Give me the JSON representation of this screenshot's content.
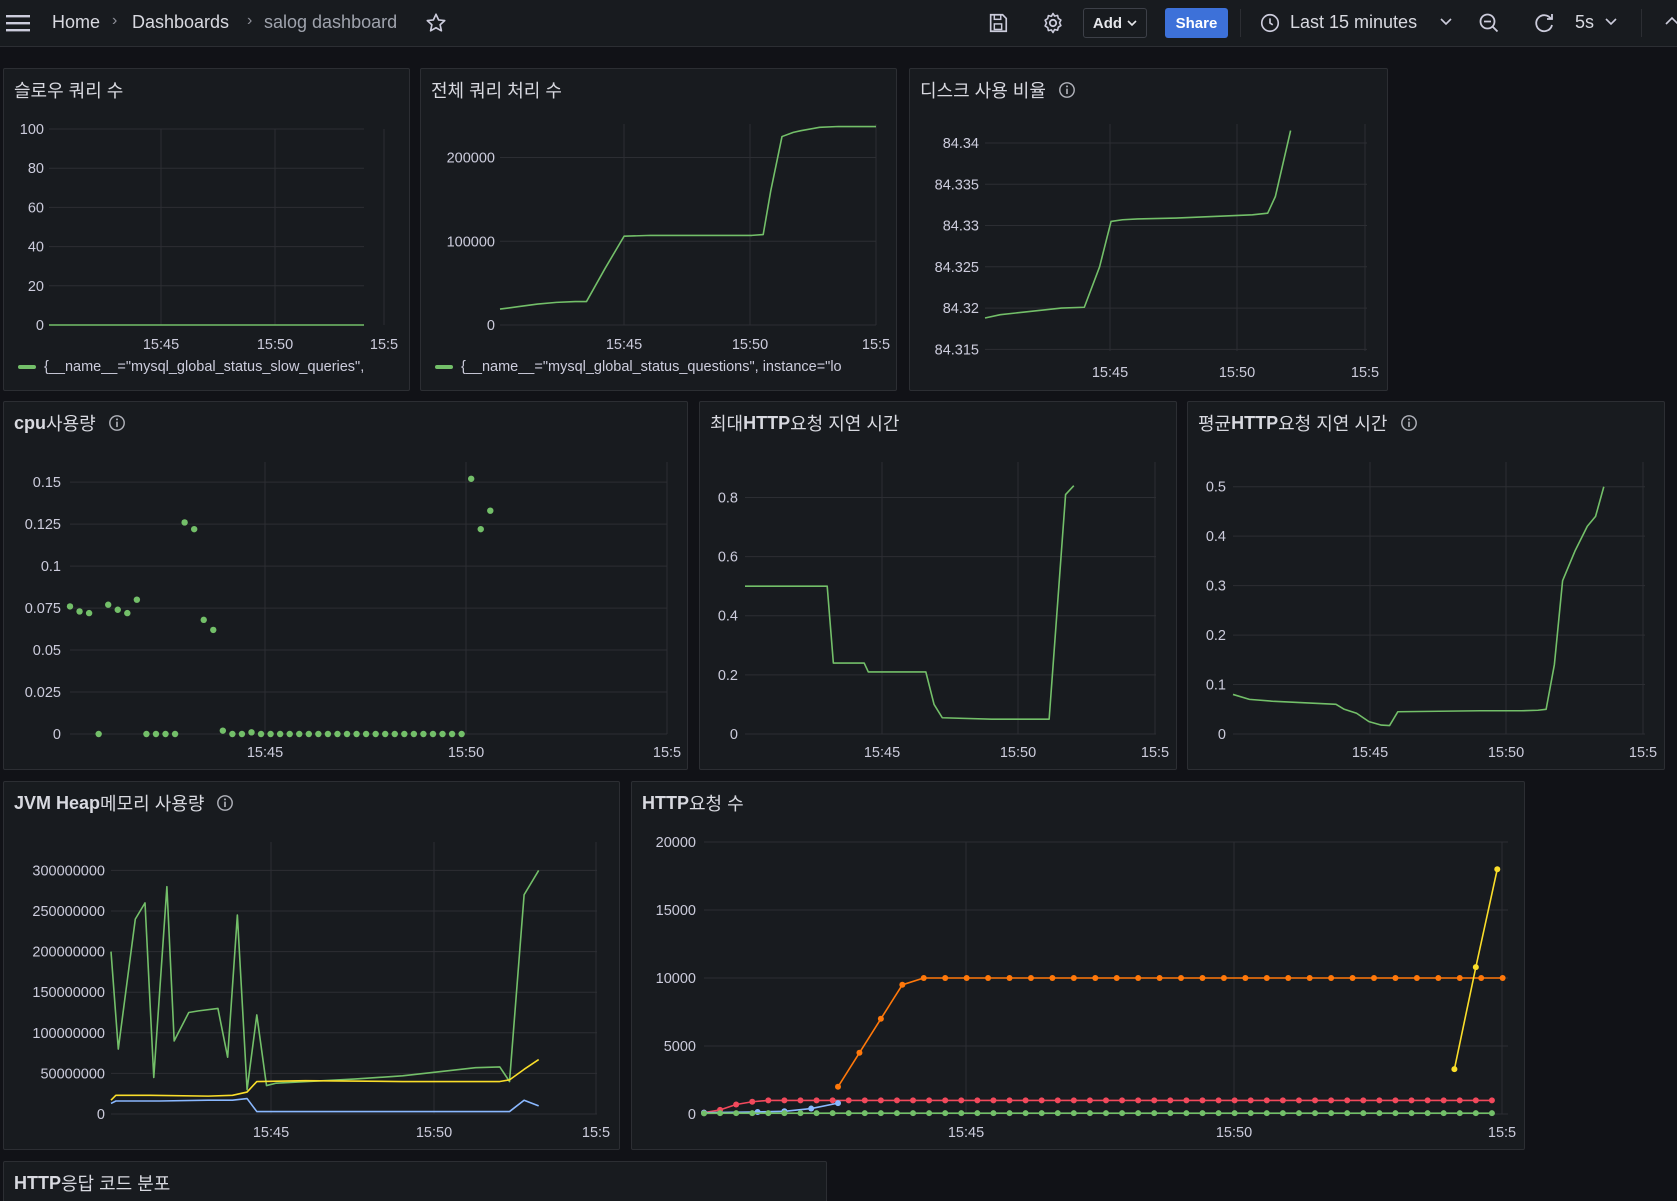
{
  "nav": {
    "home": "Home",
    "dashboards": "Dashboards",
    "current": "salog dashboard",
    "add_label": "Add",
    "share_label": "Share",
    "time_range": "Last 15 minutes",
    "refresh_interval": "5s"
  },
  "colors": {
    "green": "#73bf69",
    "yellow": "#fade2a",
    "blue": "#8ab8ff",
    "orange": "#ff780a",
    "red": "#f2495c",
    "grid": "#2c2e33",
    "share": "#3d71d9"
  },
  "panels": {
    "slow_queries": {
      "title": "슬로우 쿼리 수",
      "legend": "{__name__=\"mysql_global_status_slow_queries\","
    },
    "questions": {
      "title": "전체 쿼리 처리 수",
      "legend": "{__name__=\"mysql_global_status_questions\", instance=\"lo"
    },
    "disk": {
      "title": "디스크 사용 비율"
    },
    "cpu": {
      "title_bold": "cpu",
      "title_rest": " 사용량"
    },
    "max_latency": {
      "title_pre": "최대 ",
      "title_bold": "HTTP",
      "title_rest": " 요청 지연 시간"
    },
    "avg_latency": {
      "title_pre": "평균 ",
      "title_bold": "HTTP",
      "title_rest": " 요청 지연 시간"
    },
    "jvm_heap": {
      "title_bold": "JVM Heap",
      "title_rest": " 메모리 사용량"
    },
    "http_requests": {
      "title_bold": "HTTP",
      "title_rest": " 요청 수"
    },
    "http_codes": {
      "title_bold": "HTTP",
      "title_rest": " 응답 코드 분포"
    }
  },
  "chart_data": [
    {
      "id": "slow_queries",
      "type": "line",
      "x_ticks": [
        "15:45",
        "15:50",
        "15:5"
      ],
      "y_ticks": [
        "100",
        "80",
        "60",
        "40",
        "20",
        "0"
      ],
      "ylim": [
        0,
        100
      ],
      "series": [
        {
          "color": "green",
          "x": [
            0,
            1
          ],
          "values": [
            0,
            0
          ]
        }
      ]
    },
    {
      "id": "questions",
      "type": "line",
      "x_ticks": [
        "15:45",
        "15:50",
        "15:5"
      ],
      "y_ticks": [
        "200000",
        "100000",
        "0"
      ],
      "ylim": [
        0,
        240000
      ],
      "series": [
        {
          "color": "green",
          "x": [
            0,
            0.05,
            0.1,
            0.15,
            0.2,
            0.23,
            0.28,
            0.33,
            0.4,
            0.5,
            0.6,
            0.67,
            0.7,
            0.72,
            0.75,
            0.78,
            0.8,
            0.85,
            0.9,
            1.0
          ],
          "values": [
            19000,
            22000,
            25000,
            27000,
            28000,
            28000,
            68000,
            106000,
            107000,
            107000,
            107000,
            107000,
            108000,
            160000,
            225000,
            230000,
            232000,
            236000,
            237000,
            237000
          ]
        }
      ]
    },
    {
      "id": "disk",
      "type": "line",
      "x_ticks": [
        "15:45",
        "15:50",
        "15:5"
      ],
      "y_ticks": [
        "84.34",
        "84.335",
        "84.33",
        "84.325",
        "84.32",
        "84.315"
      ],
      "ylim": [
        84.3148,
        84.3423
      ],
      "series": [
        {
          "color": "green",
          "x": [
            0,
            0.04,
            0.1,
            0.2,
            0.26,
            0.3,
            0.33,
            0.36,
            0.4,
            0.5,
            0.6,
            0.7,
            0.74,
            0.76,
            0.8
          ],
          "values": [
            84.3188,
            84.3192,
            84.3195,
            84.32,
            84.3201,
            84.325,
            84.3305,
            84.3307,
            84.3308,
            84.3309,
            84.3311,
            84.3313,
            84.3315,
            84.3335,
            84.3415
          ]
        }
      ]
    },
    {
      "id": "cpu",
      "type": "scatter",
      "x_ticks": [
        "15:45",
        "15:50",
        "15:5"
      ],
      "y_ticks": [
        "0.15",
        "0.125",
        "0.1",
        "0.075",
        "0.05",
        "0.025",
        "0"
      ],
      "ylim": [
        0,
        0.162
      ],
      "series": [
        {
          "color": "green",
          "points": [
            [
              0.0,
              0.076
            ],
            [
              0.016,
              0.073
            ],
            [
              0.032,
              0.072
            ],
            [
              0.048,
              0
            ],
            [
              0.064,
              0.077
            ],
            [
              0.08,
              0.074
            ],
            [
              0.096,
              0.072
            ],
            [
              0.112,
              0.08
            ],
            [
              0.128,
              0
            ],
            [
              0.144,
              0
            ],
            [
              0.16,
              0
            ],
            [
              0.176,
              0
            ],
            [
              0.192,
              0.126
            ],
            [
              0.208,
              0.122
            ],
            [
              0.224,
              0.068
            ],
            [
              0.24,
              0.062
            ],
            [
              0.256,
              0.002
            ],
            [
              0.272,
              0
            ],
            [
              0.288,
              0
            ],
            [
              0.304,
              0.001
            ],
            [
              0.32,
              0
            ],
            [
              0.336,
              0
            ],
            [
              0.352,
              0
            ],
            [
              0.368,
              0
            ],
            [
              0.384,
              0
            ],
            [
              0.4,
              0
            ],
            [
              0.416,
              0
            ],
            [
              0.432,
              0
            ],
            [
              0.448,
              0
            ],
            [
              0.464,
              0
            ],
            [
              0.48,
              0
            ],
            [
              0.496,
              0
            ],
            [
              0.512,
              0
            ],
            [
              0.528,
              0
            ],
            [
              0.544,
              0
            ],
            [
              0.56,
              0
            ],
            [
              0.576,
              0
            ],
            [
              0.592,
              0
            ],
            [
              0.608,
              0
            ],
            [
              0.624,
              0
            ],
            [
              0.64,
              0
            ],
            [
              0.656,
              0
            ],
            [
              0.672,
              0.152
            ],
            [
              0.688,
              0.122
            ],
            [
              0.704,
              0.133
            ]
          ]
        }
      ]
    },
    {
      "id": "max_latency",
      "type": "line",
      "x_ticks": [
        "15:45",
        "15:50",
        "15:5"
      ],
      "y_ticks": [
        "0.8",
        "0.6",
        "0.4",
        "0.2",
        "0"
      ],
      "ylim": [
        0,
        0.92
      ],
      "series": [
        {
          "color": "green",
          "x": [
            0,
            0.2,
            0.215,
            0.29,
            0.3,
            0.44,
            0.46,
            0.48,
            0.6,
            0.74,
            0.78,
            0.8
          ],
          "values": [
            0.5,
            0.5,
            0.24,
            0.24,
            0.21,
            0.21,
            0.1,
            0.055,
            0.05,
            0.05,
            0.81,
            0.84
          ]
        }
      ]
    },
    {
      "id": "avg_latency",
      "type": "line",
      "x_ticks": [
        "15:45",
        "15:50",
        "15:5"
      ],
      "y_ticks": [
        "0.5",
        "0.4",
        "0.3",
        "0.2",
        "0.1",
        "0"
      ],
      "ylim": [
        0,
        0.55
      ],
      "series": [
        {
          "color": "green",
          "x": [
            0,
            0.04,
            0.1,
            0.2,
            0.25,
            0.27,
            0.3,
            0.33,
            0.36,
            0.38,
            0.4,
            0.5,
            0.6,
            0.7,
            0.74,
            0.76,
            0.78,
            0.8,
            0.83,
            0.86,
            0.88,
            0.9
          ],
          "values": [
            0.08,
            0.07,
            0.066,
            0.062,
            0.06,
            0.05,
            0.042,
            0.025,
            0.018,
            0.017,
            0.045,
            0.046,
            0.047,
            0.047,
            0.048,
            0.05,
            0.14,
            0.31,
            0.37,
            0.42,
            0.44,
            0.5
          ]
        }
      ]
    },
    {
      "id": "jvm_heap",
      "type": "line",
      "x_ticks": [
        "15:45",
        "15:50",
        "15:5"
      ],
      "y_ticks": [
        "300000000",
        "250000000",
        "200000000",
        "150000000",
        "100000000",
        "50000000",
        "0"
      ],
      "ylim": [
        0,
        335000000
      ],
      "series": [
        {
          "color": "green",
          "x": [
            0,
            0.015,
            0.05,
            0.07,
            0.088,
            0.115,
            0.13,
            0.16,
            0.18,
            0.22,
            0.24,
            0.26,
            0.28,
            0.3,
            0.32,
            0.34,
            0.5,
            0.6,
            0.75,
            0.8,
            0.82,
            0.85,
            0.88
          ],
          "values": [
            200000000,
            80000000,
            240000000,
            260000000,
            45000000,
            280000000,
            90000000,
            125000000,
            127000000,
            130000000,
            70000000,
            245000000,
            30000000,
            122000000,
            35000000,
            38000000,
            43000000,
            47000000,
            57000000,
            58000000,
            40000000,
            270000000,
            300000000
          ]
        },
        {
          "color": "yellow",
          "x": [
            0,
            0.01,
            0.08,
            0.2,
            0.25,
            0.28,
            0.3,
            0.4,
            0.6,
            0.8,
            0.82,
            0.85,
            0.88
          ],
          "values": [
            17000000,
            23000000,
            23000000,
            22000000,
            23000000,
            27000000,
            40000000,
            41000000,
            40000000,
            40000000,
            42000000,
            55000000,
            67000000
          ]
        },
        {
          "color": "blue",
          "x": [
            0,
            0.01,
            0.1,
            0.2,
            0.25,
            0.28,
            0.3,
            0.5,
            0.6,
            0.8,
            0.82,
            0.85,
            0.88
          ],
          "values": [
            13000000,
            16000000,
            16000000,
            17000000,
            17000000,
            19000000,
            3000000,
            3000000,
            3000000,
            3000000,
            3000000,
            17000000,
            10000000
          ]
        }
      ]
    },
    {
      "id": "http_requests",
      "type": "line",
      "x_ticks": [
        "15:45",
        "15:50",
        "15:5"
      ],
      "y_ticks": [
        "20000",
        "15000",
        "10000",
        "5000",
        "0"
      ],
      "ylim": [
        0,
        20000
      ],
      "series": [
        {
          "color": "orange",
          "x": [
            0.25,
            0.29,
            0.33,
            0.37,
            0.41,
            0.45,
            0.49,
            0.53,
            0.57,
            0.61,
            0.65,
            0.69,
            0.73,
            0.77,
            0.81,
            0.85,
            0.89,
            0.93,
            0.97,
            1.01,
            1.05,
            1.09,
            1.13,
            1.17,
            1.21,
            1.25,
            1.29,
            1.33,
            1.37,
            1.41,
            1.45,
            1.49
          ],
          "values": [
            2000,
            4500,
            7000,
            9500,
            10000,
            10000,
            10000,
            10000,
            10000,
            10000,
            10000,
            10000,
            10000,
            10000,
            10000,
            10000,
            10000,
            10000,
            10000,
            10000,
            10000,
            10000,
            10000,
            10000,
            10000,
            10000,
            10000,
            10000,
            10000,
            10000,
            10000,
            10000
          ]
        },
        {
          "color": "yellow",
          "x": [
            1.4,
            1.44,
            1.48
          ],
          "values": [
            3300,
            10800,
            18000
          ]
        },
        {
          "color": "red",
          "x": [
            0.0,
            0.03,
            0.06,
            0.09,
            0.12,
            0.15,
            0.18,
            0.21,
            0.24,
            0.27,
            0.3,
            0.33,
            0.36,
            0.39,
            0.42,
            0.45,
            0.48,
            0.51,
            0.54,
            0.57,
            0.6,
            0.63,
            0.66,
            0.69,
            0.72,
            0.75,
            0.78,
            0.81,
            0.84,
            0.87,
            0.9,
            0.93,
            0.96,
            0.99,
            1.02,
            1.05,
            1.08,
            1.11,
            1.14,
            1.17,
            1.2,
            1.23,
            1.26,
            1.29,
            1.32,
            1.35,
            1.38,
            1.41,
            1.44,
            1.47
          ],
          "values": [
            100,
            300,
            700,
            900,
            1000,
            1000,
            1000,
            1000,
            1000,
            1000,
            1000,
            1000,
            1000,
            1000,
            1000,
            1000,
            1000,
            1000,
            1000,
            1000,
            1000,
            1000,
            1000,
            1000,
            1000,
            1000,
            1000,
            1000,
            1000,
            1000,
            1000,
            1000,
            1000,
            1000,
            1000,
            1000,
            1000,
            1000,
            1000,
            1000,
            1000,
            1000,
            1000,
            1000,
            1000,
            1000,
            1000,
            1000,
            1000,
            1000
          ]
        },
        {
          "color": "blue",
          "x": [
            0.0,
            0.1,
            0.15,
            0.2,
            0.25
          ],
          "values": [
            100,
            150,
            200,
            400,
            800
          ]
        },
        {
          "color": "green",
          "x": [
            0.0,
            0.03,
            0.06,
            0.09,
            0.12,
            0.15,
            0.18,
            0.21,
            0.24,
            0.27,
            0.3,
            0.33,
            0.36,
            0.39,
            0.42,
            0.45,
            0.48,
            0.51,
            0.54,
            0.57,
            0.6,
            0.63,
            0.66,
            0.69,
            0.72,
            0.75,
            0.78,
            0.81,
            0.84,
            0.87,
            0.9,
            0.93,
            0.96,
            0.99,
            1.02,
            1.05,
            1.08,
            1.11,
            1.14,
            1.17,
            1.2,
            1.23,
            1.26,
            1.29,
            1.32,
            1.35,
            1.38,
            1.41,
            1.44,
            1.47
          ],
          "values": [
            50,
            60,
            60,
            60,
            60,
            60,
            60,
            60,
            60,
            60,
            60,
            60,
            60,
            60,
            60,
            60,
            60,
            60,
            60,
            60,
            60,
            60,
            60,
            60,
            60,
            60,
            60,
            60,
            60,
            60,
            60,
            60,
            60,
            60,
            60,
            60,
            60,
            60,
            60,
            60,
            60,
            60,
            60,
            60,
            60,
            60,
            60,
            60,
            60,
            60
          ]
        }
      ]
    }
  ]
}
